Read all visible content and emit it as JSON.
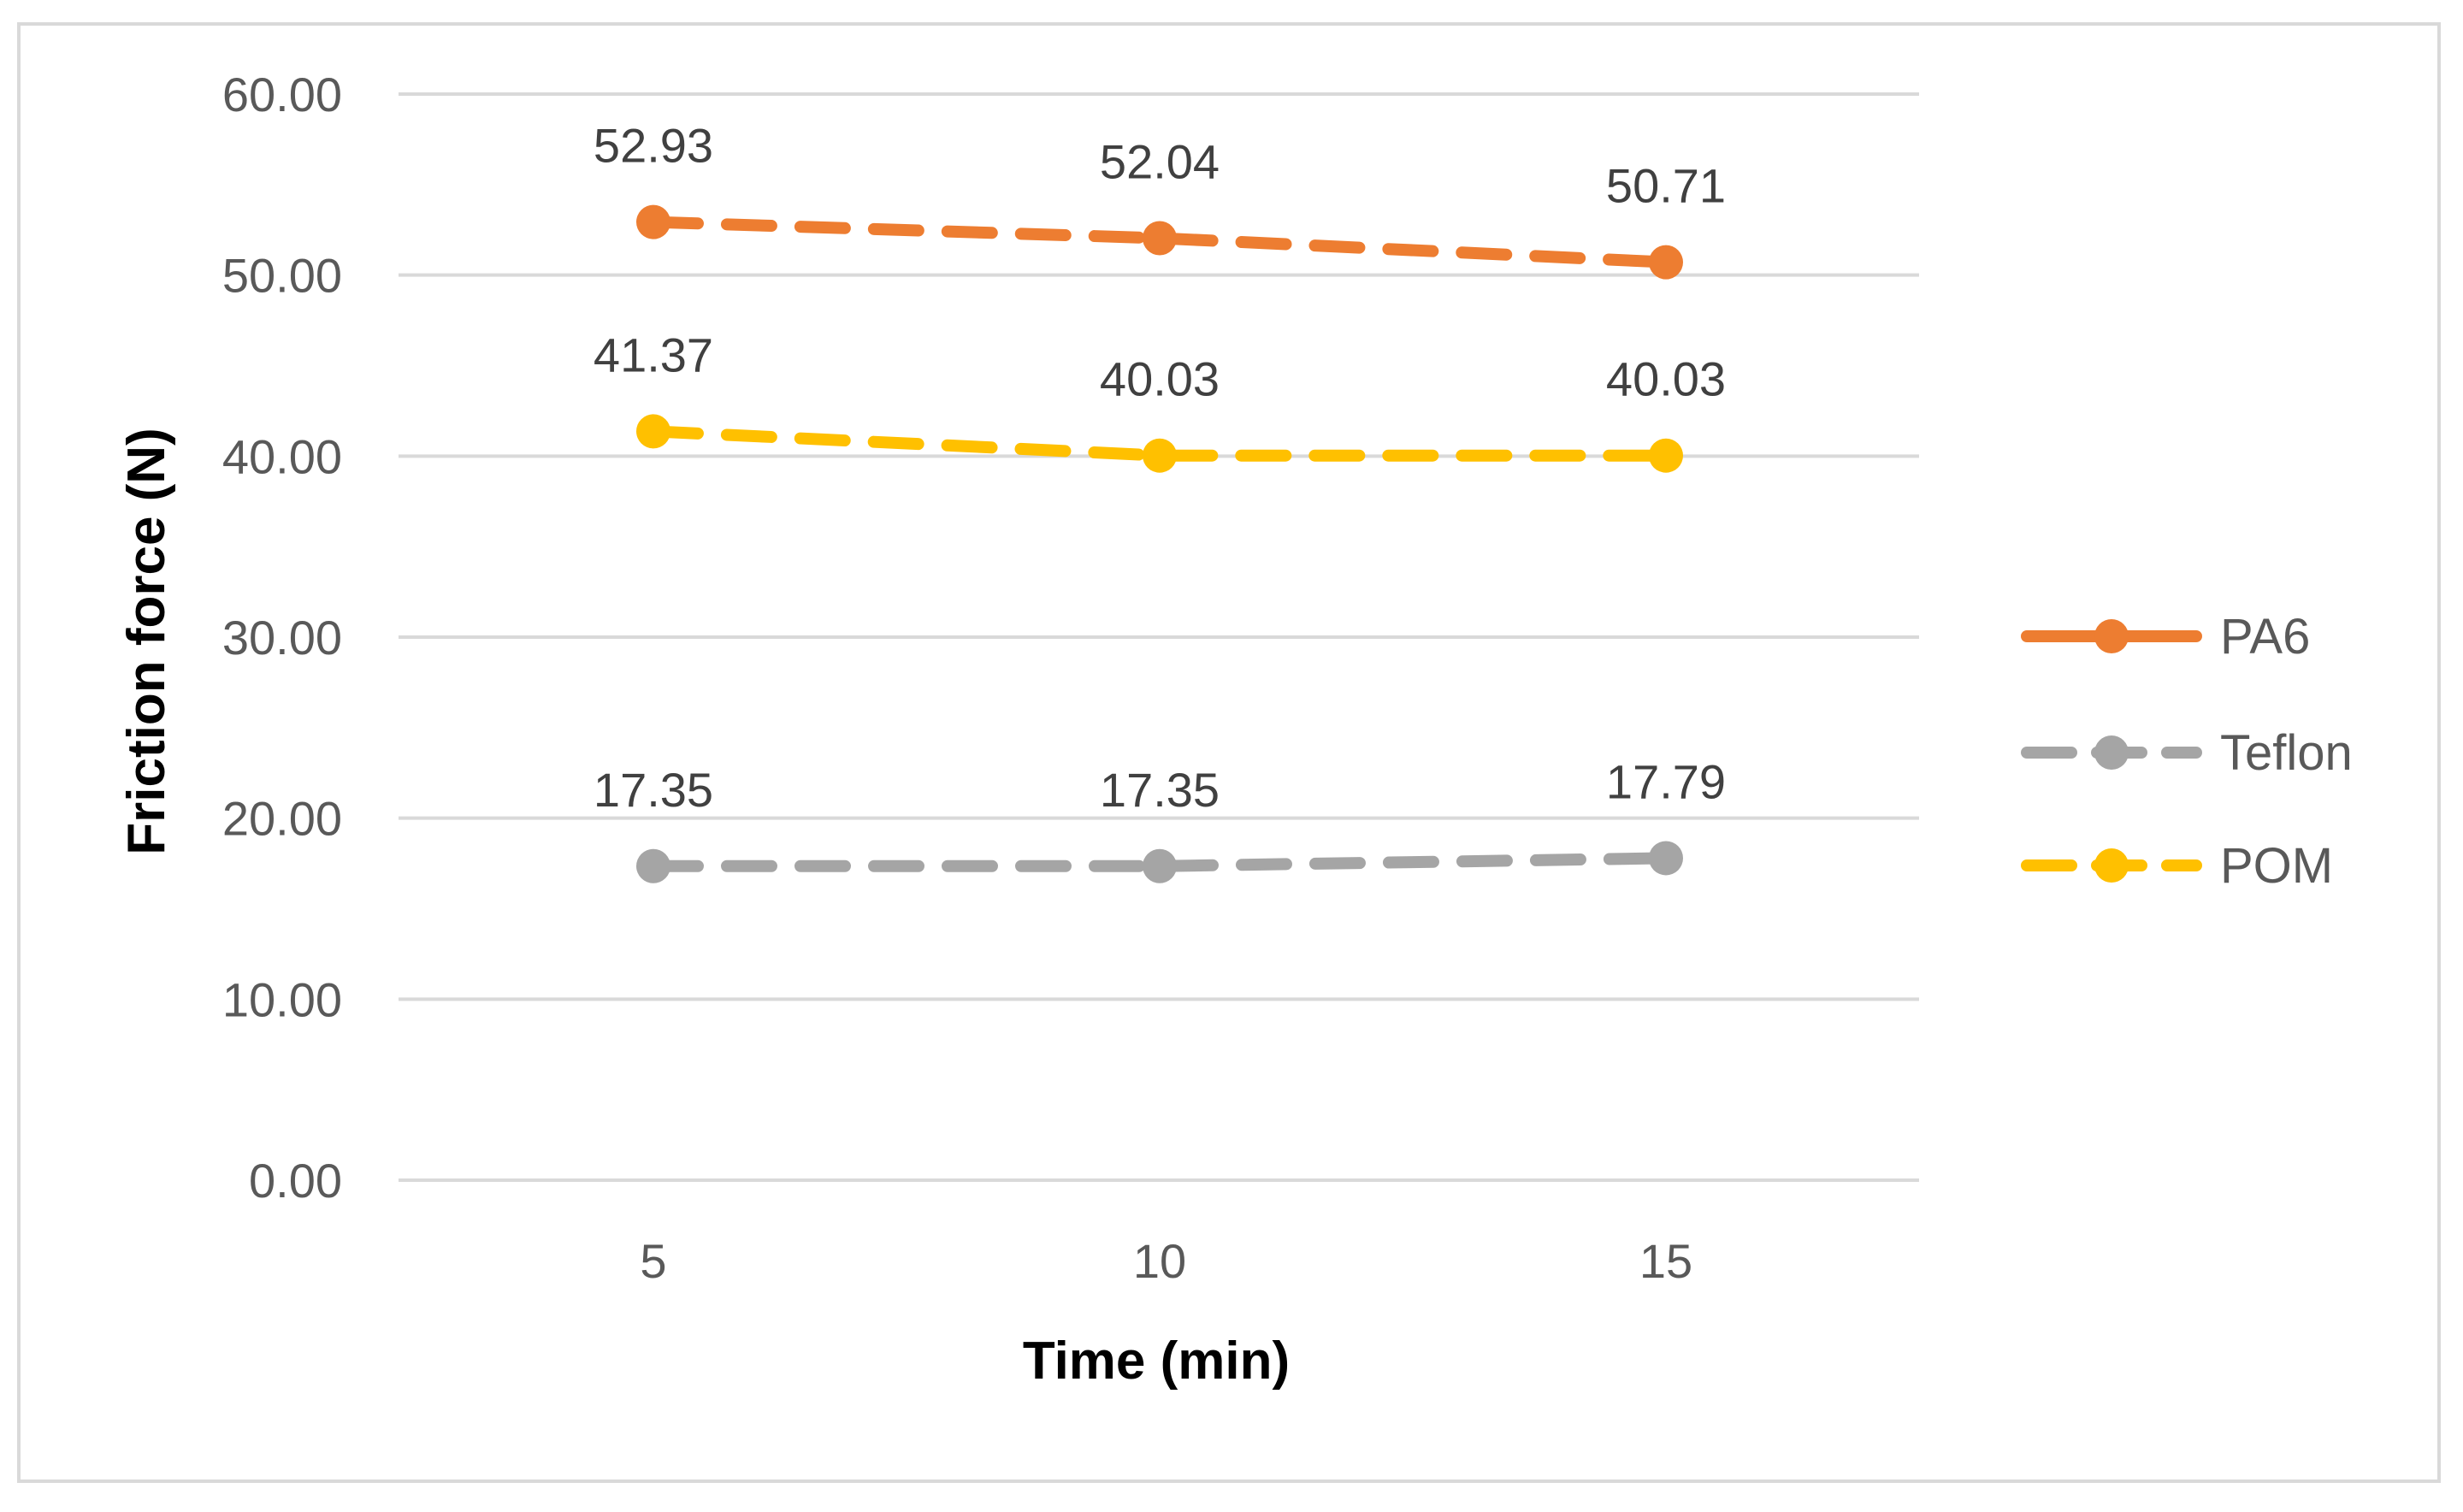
{
  "chart_data": {
    "type": "line",
    "title": "",
    "xlabel": "Time (min)",
    "ylabel": "Friction force (N)",
    "x": [
      5,
      10,
      15
    ],
    "x_tick_labels": [
      "5",
      "10",
      "15"
    ],
    "y_tick_labels": [
      "0.00",
      "10.00",
      "20.00",
      "30.00",
      "40.00",
      "50.00",
      "60.00"
    ],
    "ylim": [
      0,
      60
    ],
    "grid": true,
    "legend_position": "right",
    "series": [
      {
        "name": "PA6",
        "values": [
          52.93,
          52.04,
          50.71
        ],
        "labels": [
          "52.93",
          "52.04",
          "50.71"
        ],
        "color": "#ED7D31"
      },
      {
        "name": "Teflon",
        "values": [
          17.35,
          17.35,
          17.79
        ],
        "labels": [
          "17.35",
          "17.35",
          "17.79"
        ],
        "color": "#A5A5A5"
      },
      {
        "name": "POM",
        "values": [
          41.37,
          40.03,
          40.03
        ],
        "labels": [
          "41.37",
          "40.03",
          "40.03"
        ],
        "color": "#FFC000"
      }
    ]
  }
}
